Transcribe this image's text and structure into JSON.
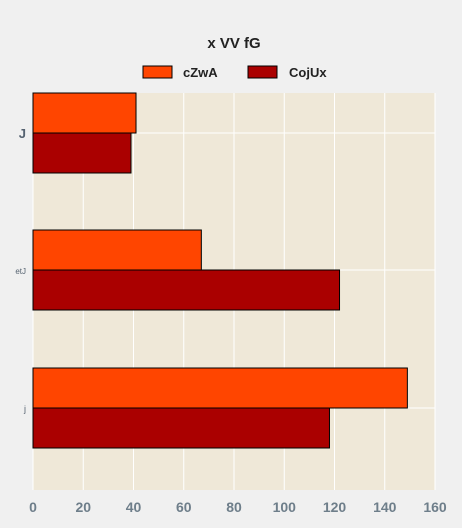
{
  "chart_data": {
    "type": "bar",
    "orientation": "horizontal",
    "title": "x VV fG",
    "xlabel": "",
    "ylabel": "",
    "categories": [
      "J",
      "etJ",
      "j"
    ],
    "series": [
      {
        "name": "cZwA",
        "values": [
          41,
          67,
          149
        ],
        "color": "#ff4500"
      },
      {
        "name": "CojUx",
        "values": [
          39,
          122,
          118
        ],
        "color": "#aa0000"
      }
    ],
    "xlim": [
      0,
      160
    ],
    "xticks": [
      "0",
      "20",
      "40",
      "60",
      "80",
      "100",
      "120",
      "140",
      "160"
    ],
    "grid": true,
    "legend_position": "top-center",
    "colors": {
      "background": "#f0f0f0",
      "plot_background": "#efe8d8",
      "grid": "#ffffff",
      "bar_edge": "#000000"
    }
  }
}
